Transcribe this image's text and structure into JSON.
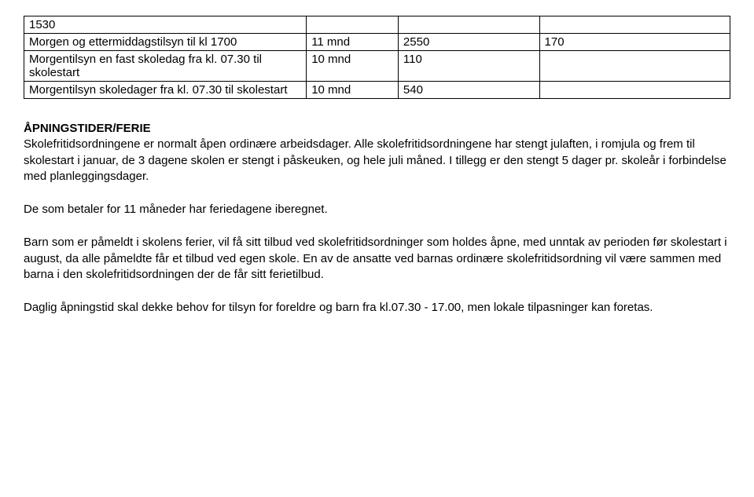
{
  "table": {
    "rows": [
      {
        "desc": "1530",
        "col2": "",
        "col3": "",
        "col4": ""
      },
      {
        "desc": "Morgen og ettermiddagstilsyn til kl 1700",
        "col2": "11 mnd",
        "col3": "2550",
        "col4": "170"
      },
      {
        "desc": "Morgentilsyn en fast skoledag fra kl. 07.30 til skolestart",
        "col2": "10 mnd",
        "col3": "110",
        "col4": ""
      },
      {
        "desc": "Morgentilsyn skoledager fra kl. 07.30 til skolestart",
        "col2": "10 mnd",
        "col3": "540",
        "col4": ""
      }
    ]
  },
  "heading": "ÅPNINGSTIDER/FERIE",
  "p1": "Skolefritidsordningene er normalt åpen ordinære arbeidsdager. Alle skolefritidsordningene har stengt julaften, i romjula og frem til skolestart i januar, de 3 dagene skolen er stengt i påskeuken, og hele juli måned. I tillegg er den stengt 5 dager pr. skoleår i forbindelse med planleggingsdager.",
  "p2": "De som betaler for 11 måneder har feriedagene iberegnet.",
  "p3": " Barn som er påmeldt i skolens ferier, vil få sitt tilbud ved skolefritidsordninger som holdes åpne, med unntak av perioden før skolestart i august, da alle påmeldte får et tilbud ved egen skole. En av de ansatte ved barnas ordinære skolefritidsordning vil være sammen med barna i den skolefritidsordningen der de får sitt ferietilbud.",
  "p4": "Daglig åpningstid skal dekke behov for tilsyn for foreldre og barn fra kl.07.30 - 17.00, men lokale tilpasninger kan foretas."
}
